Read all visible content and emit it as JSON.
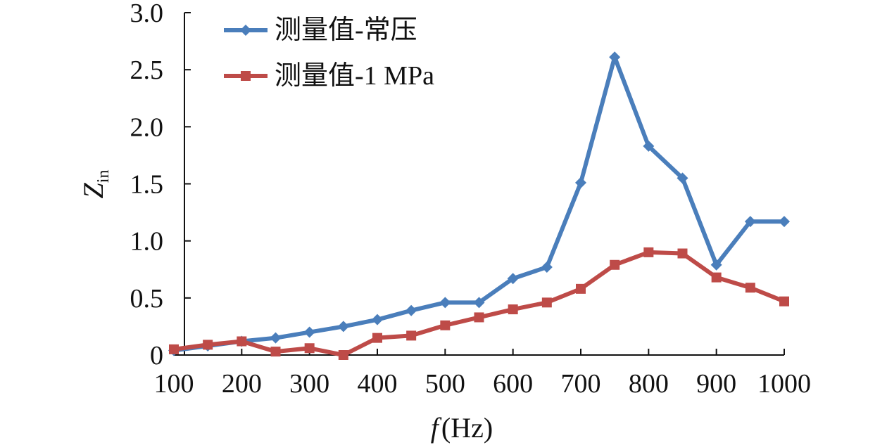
{
  "chart_data": {
    "type": "line",
    "xlabel_italic": "f",
    "xlabel_unit": "(Hz)",
    "ylabel_main": "Z",
    "ylabel_sub": "in",
    "x": [
      100,
      150,
      200,
      250,
      300,
      350,
      400,
      450,
      500,
      550,
      600,
      650,
      700,
      750,
      800,
      850,
      900,
      950,
      1000
    ],
    "xlim": [
      100,
      1000
    ],
    "ylim": [
      0,
      3.0
    ],
    "x_ticks": [
      100,
      200,
      300,
      400,
      500,
      600,
      700,
      800,
      900,
      1000
    ],
    "x_tick_labels": [
      "100",
      "200",
      "300",
      "400",
      "500",
      "600",
      "700",
      "800",
      "900",
      "1000"
    ],
    "y_ticks": [
      0,
      0.5,
      1.0,
      1.5,
      2.0,
      2.5,
      3.0
    ],
    "y_tick_labels": [
      "0",
      "0.5",
      "1.0",
      "1.5",
      "2.0",
      "2.5",
      "3.0"
    ],
    "grid": false,
    "legend_position": "top-left",
    "series": [
      {
        "name": "测量值-常压",
        "color": "#4a7ebb",
        "marker": "diamond",
        "values": [
          0.04,
          0.08,
          0.12,
          0.15,
          0.2,
          0.25,
          0.31,
          0.39,
          0.46,
          0.46,
          0.67,
          0.77,
          1.51,
          2.61,
          1.83,
          1.55,
          0.79,
          1.17,
          1.17
        ]
      },
      {
        "name": "测量值-1 MPa",
        "color": "#be4b48",
        "marker": "square",
        "values": [
          0.05,
          0.09,
          0.12,
          0.03,
          0.06,
          0.0,
          0.15,
          0.17,
          0.26,
          0.33,
          0.4,
          0.46,
          0.58,
          0.79,
          0.9,
          0.89,
          0.68,
          0.59,
          0.47
        ]
      }
    ]
  }
}
